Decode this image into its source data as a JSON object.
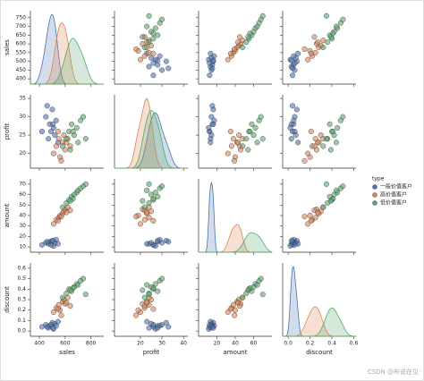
{
  "chart_data": {
    "type": "pairplot",
    "variables": [
      "sales",
      "profit",
      "amount",
      "discount"
    ],
    "axes": {
      "sales": {
        "xlim": [
          330,
          900
        ],
        "xticks": [
          400,
          600,
          800
        ],
        "ylim": [
          370,
          790
        ],
        "yticks": [
          400,
          450,
          500,
          550,
          600,
          650,
          700,
          750
        ]
      },
      "profit": {
        "xlim": [
          8,
          42
        ],
        "xticks": [
          20,
          30,
          40
        ],
        "ylim": [
          16,
          36
        ],
        "yticks": [
          20,
          25,
          30,
          35
        ]
      },
      "amount": {
        "xlim": [
          0,
          80
        ],
        "xticks": [
          20,
          40,
          60
        ],
        "ylim": [
          5,
          75
        ],
        "yticks": [
          10,
          20,
          30,
          40,
          50,
          60,
          70
        ]
      },
      "discount": {
        "xlim": [
          -0.05,
          0.62
        ],
        "xticks": [
          {
            "value": 0,
            "label": "0.0"
          },
          0.2,
          0.4,
          0.6
        ],
        "ylim": [
          -0.05,
          0.65
        ],
        "yticks": [
          {
            "value": 0,
            "label": "0.0"
          },
          0.1,
          0.2,
          0.3,
          0.4,
          0.5,
          0.6
        ]
      }
    },
    "legend_title": "type",
    "series": [
      {
        "name": "一般价值客户",
        "color": "#4c72b0",
        "sales": [
          420,
          450,
          470,
          480,
          500,
          510,
          520,
          530,
          545,
          460,
          490,
          505
        ],
        "profit": [
          26,
          30,
          24,
          28,
          32,
          27,
          25,
          29,
          23,
          33,
          26,
          28
        ],
        "amount": [
          12,
          14,
          13,
          15,
          16,
          11,
          14,
          17,
          13,
          15,
          12,
          16
        ],
        "discount": [
          0.04,
          0.06,
          0.03,
          0.05,
          0.08,
          0.02,
          0.07,
          0.05,
          0.09,
          0.04,
          0.06,
          0.03
        ]
      },
      {
        "name": "高价值客户",
        "color": "#dd8452",
        "sales": [
          510,
          530,
          550,
          560,
          580,
          590,
          600,
          620,
          640,
          570,
          545,
          610
        ],
        "profit": [
          20,
          22,
          24,
          19,
          23,
          25,
          21,
          24,
          22,
          18,
          26,
          23
        ],
        "amount": [
          32,
          36,
          38,
          40,
          42,
          44,
          46,
          48,
          45,
          39,
          35,
          43
        ],
        "discount": [
          0.18,
          0.22,
          0.25,
          0.2,
          0.28,
          0.3,
          0.26,
          0.32,
          0.24,
          0.15,
          0.21,
          0.27
        ]
      },
      {
        "name": "低价值客户",
        "color": "#55a868",
        "sales": [
          580,
          610,
          630,
          650,
          670,
          690,
          700,
          720,
          740,
          760,
          660,
          640
        ],
        "profit": [
          22,
          24,
          26,
          28,
          25,
          27,
          23,
          29,
          30,
          24,
          26,
          21
        ],
        "amount": [
          48,
          52,
          55,
          58,
          60,
          62,
          64,
          66,
          68,
          70,
          56,
          54
        ],
        "discount": [
          0.32,
          0.36,
          0.4,
          0.38,
          0.42,
          0.45,
          0.44,
          0.48,
          0.5,
          0.35,
          0.41,
          0.39
        ]
      }
    ],
    "watermark": "CSDN @布说在见"
  }
}
